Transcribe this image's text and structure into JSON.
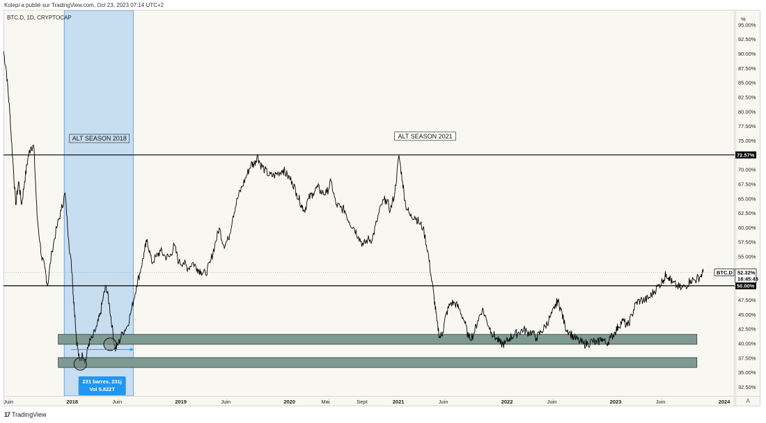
{
  "header": {
    "text": "Kolepi a publié sur TradingView.com, Oct 23, 2023 07:14 UTC+2"
  },
  "symbol": {
    "label": "BTC.D, 1D, CRYPTOCAP"
  },
  "footer": {
    "brand": "TradingView"
  },
  "price_scale": {
    "unit_label": "%",
    "corner_label": "A"
  },
  "colors": {
    "background": "#f8f7f2",
    "price_line": "#000000",
    "alt_season_fill": "#c7def0",
    "alt_season_border": "#4a90d9",
    "support_zone_fill": "#7f9a93",
    "measure_box": "#2196f3"
  },
  "chart_data": {
    "type": "line",
    "title": "BTC.D, 1D, CRYPTOCAP",
    "ylabel": "%",
    "ylim": [
      31,
      97.5
    ],
    "y_ticks": [
      "95.00%",
      "92.50%",
      "90.00%",
      "87.50%",
      "85.00%",
      "82.50%",
      "80.00%",
      "77.50%",
      "75.00%",
      "72.50%",
      "70.00%",
      "67.50%",
      "65.00%",
      "62.50%",
      "60.00%",
      "57.50%",
      "55.00%",
      "52.50%",
      "50.00%",
      "47.50%",
      "45.00%",
      "42.50%",
      "40.00%",
      "37.50%",
      "35.00%",
      "32.50%"
    ],
    "x_range": [
      "2017-05-15",
      "2024-02-05"
    ],
    "x_ticks": [
      {
        "label": "Juin",
        "date": "2017-06-01",
        "bold": false
      },
      {
        "label": "2018",
        "date": "2018-01-01",
        "bold": true
      },
      {
        "label": "Juin",
        "date": "2018-06-01",
        "bold": false
      },
      {
        "label": "2019",
        "date": "2019-01-01",
        "bold": true
      },
      {
        "label": "Juin",
        "date": "2019-06-01",
        "bold": false
      },
      {
        "label": "2020",
        "date": "2020-01-01",
        "bold": true
      },
      {
        "label": "Mai",
        "date": "2020-05-01",
        "bold": false
      },
      {
        "label": "Sept",
        "date": "2020-09-01",
        "bold": false
      },
      {
        "label": "2021",
        "date": "2021-01-01",
        "bold": true
      },
      {
        "label": "Juin",
        "date": "2021-06-01",
        "bold": false
      },
      {
        "label": "2022",
        "date": "2022-01-01",
        "bold": true
      },
      {
        "label": "Juin",
        "date": "2022-06-01",
        "bold": false
      },
      {
        "label": "2023",
        "date": "2023-01-01",
        "bold": true
      },
      {
        "label": "Juin",
        "date": "2023-06-01",
        "bold": false
      },
      {
        "label": "2024",
        "date": "2024-01-01",
        "bold": true
      }
    ],
    "series": [
      {
        "points": [
          [
            "2017-05-15",
            90.5
          ],
          [
            "2017-05-25",
            87
          ],
          [
            "2017-06-05",
            80
          ],
          [
            "2017-06-15",
            72
          ],
          [
            "2017-06-25",
            64
          ],
          [
            "2017-07-05",
            68
          ],
          [
            "2017-07-15",
            64
          ],
          [
            "2017-07-25",
            68
          ],
          [
            "2017-08-05",
            72
          ],
          [
            "2017-08-15",
            74
          ],
          [
            "2017-08-25",
            74
          ],
          [
            "2017-09-05",
            62
          ],
          [
            "2017-09-20",
            55
          ],
          [
            "2017-10-01",
            53
          ],
          [
            "2017-10-10",
            50
          ],
          [
            "2017-10-25",
            56
          ],
          [
            "2017-11-10",
            60
          ],
          [
            "2017-11-25",
            63
          ],
          [
            "2017-12-08",
            66
          ],
          [
            "2017-12-20",
            58
          ],
          [
            "2018-01-01",
            52
          ],
          [
            "2018-01-05",
            48
          ],
          [
            "2018-01-10",
            45
          ],
          [
            "2018-01-15",
            41
          ],
          [
            "2018-01-25",
            37
          ],
          [
            "2018-02-05",
            38
          ],
          [
            "2018-02-15",
            37
          ],
          [
            "2018-02-25",
            40
          ],
          [
            "2018-03-10",
            41
          ],
          [
            "2018-03-25",
            43
          ],
          [
            "2018-04-05",
            45
          ],
          [
            "2018-04-15",
            48
          ],
          [
            "2018-04-25",
            50
          ],
          [
            "2018-05-05",
            47
          ],
          [
            "2018-05-15",
            43
          ],
          [
            "2018-05-25",
            39
          ],
          [
            "2018-06-05",
            40
          ],
          [
            "2018-06-20",
            42
          ],
          [
            "2018-07-05",
            43
          ],
          [
            "2018-07-20",
            46
          ],
          [
            "2018-08-05",
            50
          ],
          [
            "2018-08-20",
            53
          ],
          [
            "2018-09-01",
            56
          ],
          [
            "2018-09-10",
            58
          ],
          [
            "2018-09-25",
            54
          ],
          [
            "2018-10-10",
            55
          ],
          [
            "2018-10-25",
            56
          ],
          [
            "2018-11-10",
            55
          ],
          [
            "2018-11-25",
            55
          ],
          [
            "2018-12-10",
            57
          ],
          [
            "2018-12-25",
            54
          ],
          [
            "2019-01-10",
            54
          ],
          [
            "2019-01-25",
            53
          ],
          [
            "2019-02-10",
            54
          ],
          [
            "2019-02-25",
            53
          ],
          [
            "2019-03-10",
            52.5
          ],
          [
            "2019-03-25",
            52
          ],
          [
            "2019-04-10",
            54
          ],
          [
            "2019-04-25",
            57
          ],
          [
            "2019-05-10",
            60
          ],
          [
            "2019-05-25",
            57
          ],
          [
            "2019-06-10",
            58
          ],
          [
            "2019-06-25",
            62
          ],
          [
            "2019-07-10",
            65
          ],
          [
            "2019-07-25",
            67
          ],
          [
            "2019-08-10",
            69
          ],
          [
            "2019-08-25",
            71
          ],
          [
            "2019-09-05",
            71
          ],
          [
            "2019-09-15",
            72.5
          ],
          [
            "2019-09-25",
            71
          ],
          [
            "2019-10-10",
            70
          ],
          [
            "2019-10-25",
            69
          ],
          [
            "2019-11-10",
            69
          ],
          [
            "2019-11-25",
            69.5
          ],
          [
            "2019-12-10",
            70
          ],
          [
            "2019-12-25",
            69
          ],
          [
            "2020-01-10",
            68
          ],
          [
            "2020-01-25",
            66
          ],
          [
            "2020-02-10",
            64
          ],
          [
            "2020-02-20",
            63
          ],
          [
            "2020-03-05",
            65
          ],
          [
            "2020-03-20",
            66
          ],
          [
            "2020-04-05",
            67
          ],
          [
            "2020-04-20",
            66
          ],
          [
            "2020-05-05",
            66
          ],
          [
            "2020-05-20",
            68
          ],
          [
            "2020-06-05",
            64
          ],
          [
            "2020-06-20",
            63.5
          ],
          [
            "2020-07-05",
            63
          ],
          [
            "2020-07-20",
            61
          ],
          [
            "2020-08-05",
            60
          ],
          [
            "2020-08-20",
            58.5
          ],
          [
            "2020-09-05",
            57
          ],
          [
            "2020-09-20",
            58
          ],
          [
            "2020-10-05",
            58
          ],
          [
            "2020-10-20",
            61
          ],
          [
            "2020-11-05",
            64
          ],
          [
            "2020-11-20",
            65
          ],
          [
            "2020-12-05",
            63
          ],
          [
            "2020-12-20",
            66
          ],
          [
            "2021-01-03",
            72.5
          ],
          [
            "2021-01-15",
            68
          ],
          [
            "2021-01-25",
            64
          ],
          [
            "2021-02-10",
            62
          ],
          [
            "2021-02-25",
            62
          ],
          [
            "2021-03-10",
            61
          ],
          [
            "2021-03-25",
            60
          ],
          [
            "2021-04-10",
            56
          ],
          [
            "2021-04-20",
            52
          ],
          [
            "2021-05-01",
            48
          ],
          [
            "2021-05-10",
            44
          ],
          [
            "2021-05-20",
            41
          ],
          [
            "2021-05-30",
            42
          ],
          [
            "2021-06-10",
            45
          ],
          [
            "2021-06-25",
            47
          ],
          [
            "2021-07-10",
            47
          ],
          [
            "2021-07-25",
            46
          ],
          [
            "2021-08-10",
            44
          ],
          [
            "2021-08-25",
            41
          ],
          [
            "2021-09-10",
            41.5
          ],
          [
            "2021-09-25",
            44
          ],
          [
            "2021-10-10",
            46
          ],
          [
            "2021-10-25",
            44
          ],
          [
            "2021-11-10",
            42
          ],
          [
            "2021-11-25",
            41
          ],
          [
            "2021-12-10",
            40
          ],
          [
            "2021-12-25",
            40
          ],
          [
            "2022-01-10",
            41
          ],
          [
            "2022-01-25",
            41.5
          ],
          [
            "2022-02-10",
            42
          ],
          [
            "2022-02-25",
            42.5
          ],
          [
            "2022-03-10",
            42
          ],
          [
            "2022-03-25",
            42
          ],
          [
            "2022-04-10",
            41
          ],
          [
            "2022-04-25",
            42
          ],
          [
            "2022-05-10",
            43
          ],
          [
            "2022-05-25",
            44.5
          ],
          [
            "2022-06-10",
            46
          ],
          [
            "2022-06-20",
            47.5
          ],
          [
            "2022-07-01",
            46
          ],
          [
            "2022-07-15",
            43
          ],
          [
            "2022-07-30",
            42
          ],
          [
            "2022-08-15",
            41
          ],
          [
            "2022-08-30",
            40.5
          ],
          [
            "2022-09-15",
            40
          ],
          [
            "2022-09-30",
            40
          ],
          [
            "2022-10-15",
            40.5
          ],
          [
            "2022-10-30",
            40
          ],
          [
            "2022-11-15",
            41
          ],
          [
            "2022-11-30",
            40
          ],
          [
            "2022-12-15",
            41
          ],
          [
            "2022-12-30",
            42
          ],
          [
            "2023-01-10",
            43
          ],
          [
            "2023-01-25",
            44
          ],
          [
            "2023-02-10",
            43
          ],
          [
            "2023-02-25",
            45
          ],
          [
            "2023-03-10",
            47
          ],
          [
            "2023-03-25",
            47.5
          ],
          [
            "2023-04-10",
            47.5
          ],
          [
            "2023-04-25",
            48
          ],
          [
            "2023-05-10",
            49
          ],
          [
            "2023-05-25",
            50
          ],
          [
            "2023-06-10",
            51
          ],
          [
            "2023-06-20",
            52
          ],
          [
            "2023-06-30",
            51.5
          ],
          [
            "2023-07-10",
            50.5
          ],
          [
            "2023-07-25",
            50
          ],
          [
            "2023-08-10",
            49.5
          ],
          [
            "2023-08-25",
            50
          ],
          [
            "2023-09-10",
            51
          ],
          [
            "2023-09-25",
            51
          ],
          [
            "2023-10-10",
            51.5
          ],
          [
            "2023-10-23",
            52.32
          ]
        ]
      }
    ],
    "annotations": [
      {
        "kind": "vertical_band",
        "label": "ALT SEASON 2018",
        "from": "2017-12-05",
        "to": "2018-07-25"
      },
      {
        "kind": "text_box",
        "label": "ALT SEASON 2021",
        "date": "2021-04-01",
        "y": 75.8
      },
      {
        "kind": "hline",
        "y": 72.57,
        "tag": "72.57%"
      },
      {
        "kind": "hline",
        "y": 50.0,
        "tag": "50.00%"
      },
      {
        "kind": "dotted_hline",
        "y": 52.32
      },
      {
        "kind": "zone",
        "from": "2017-11-15",
        "to": "2023-10-01",
        "ylow": 39.9,
        "yhigh": 41.6
      },
      {
        "kind": "zone",
        "from": "2017-11-15",
        "to": "2023-10-01",
        "ylow": 35.9,
        "yhigh": 37.6
      },
      {
        "kind": "circle",
        "date": "2018-01-28",
        "y": 36.5
      },
      {
        "kind": "circle",
        "date": "2018-05-08",
        "y": 39.9
      }
    ],
    "measure": {
      "from": "2017-12-28",
      "to": "2018-07-25",
      "y": 39.0,
      "line1": "231 barres, 231j",
      "line2": "Vol 5.822T"
    },
    "last_price": {
      "symbol": "BTC.D",
      "value": "52.32%",
      "countdown": "18:45:45"
    }
  }
}
